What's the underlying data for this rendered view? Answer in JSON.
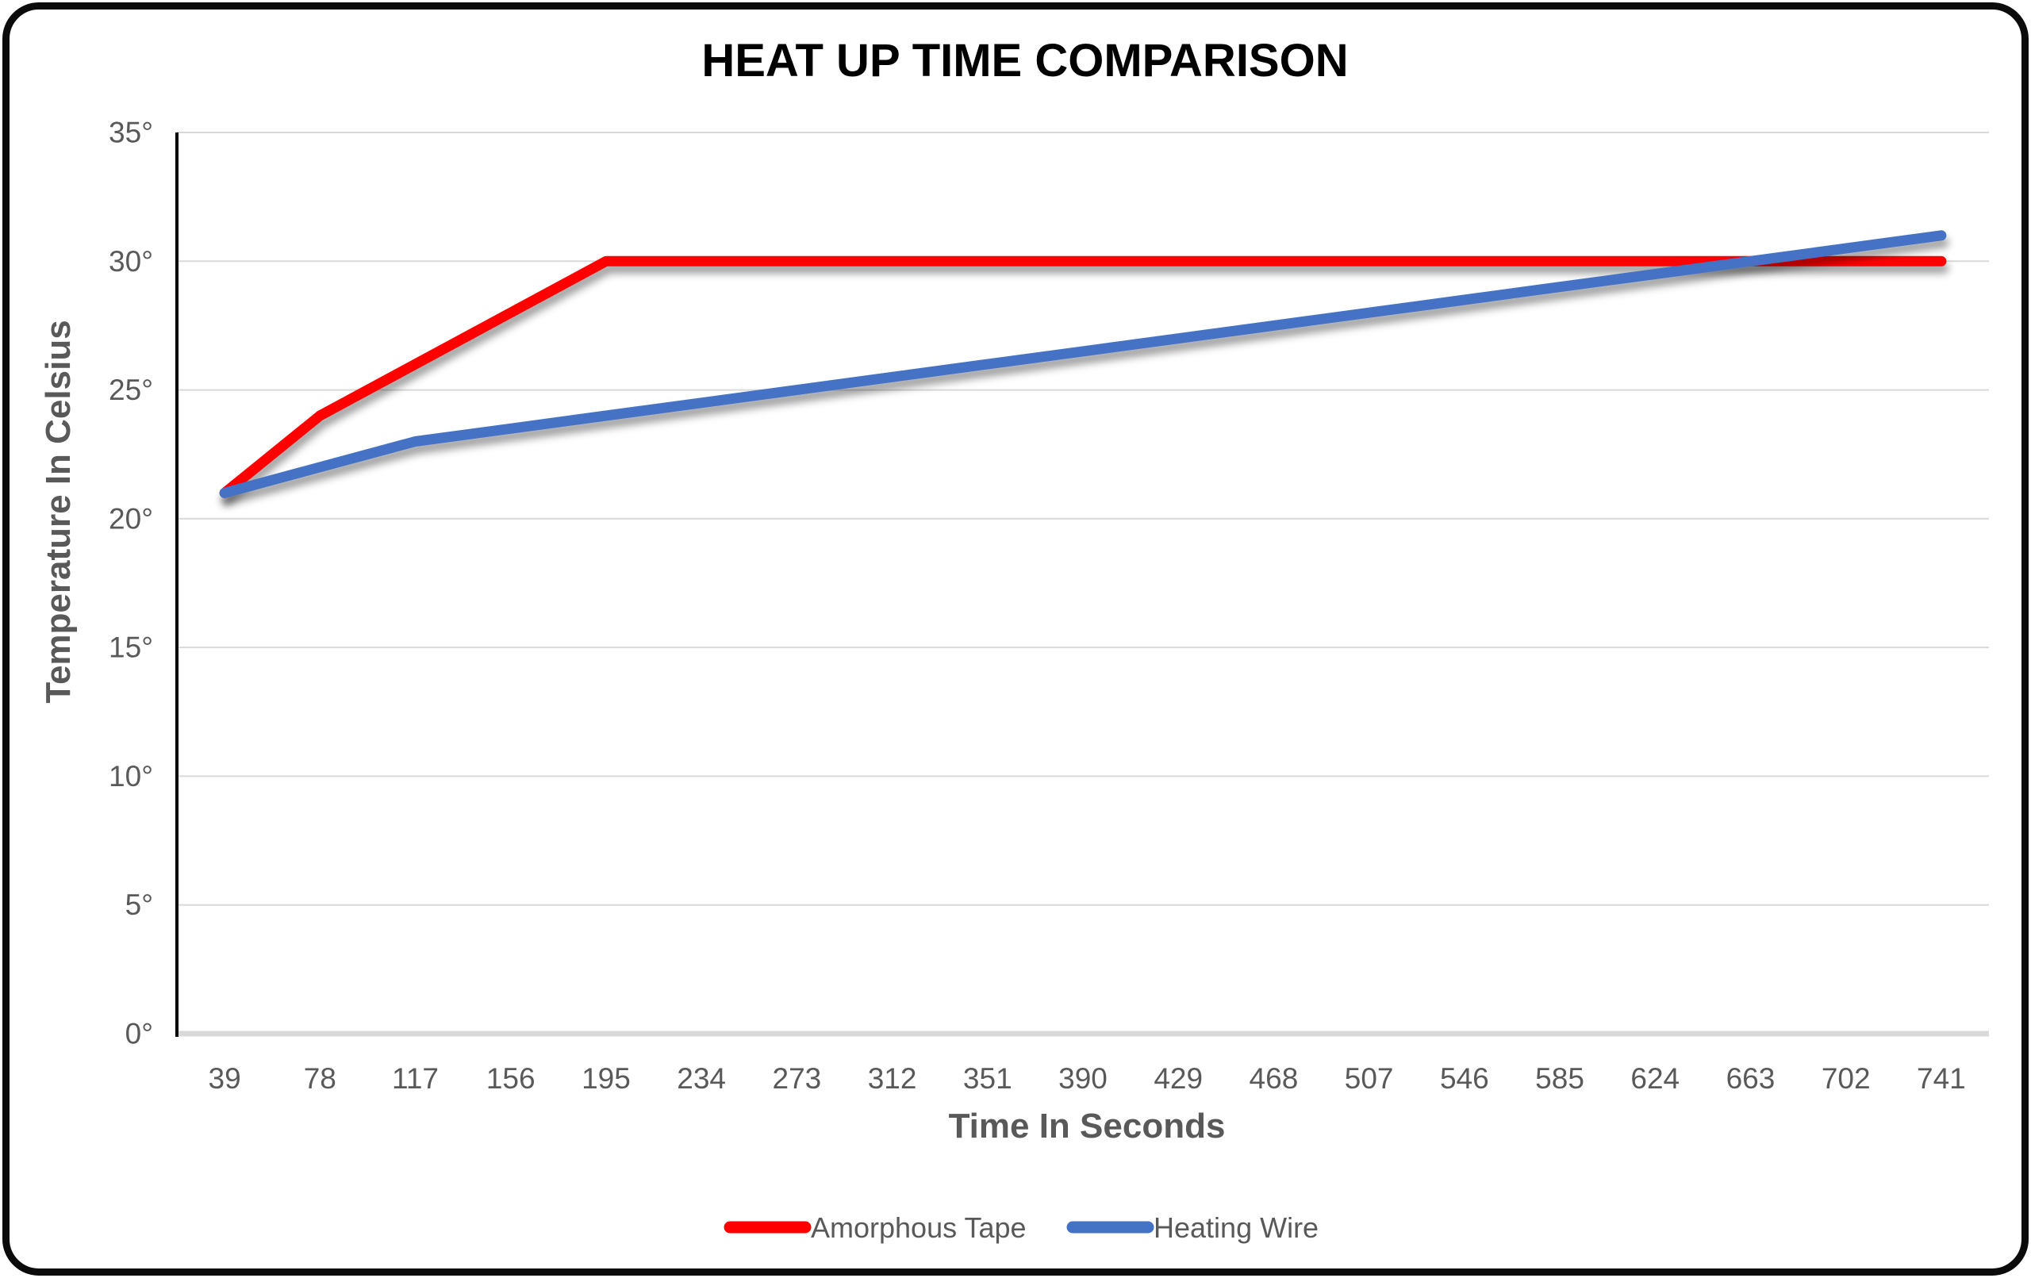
{
  "title": "HEAT UP TIME COMPARISON",
  "colors": {
    "series_red": "#FF0000",
    "series_blue": "#4472C4",
    "grid": "#D9D9D9",
    "baseline": "#D9D9D9",
    "axis_line": "#000000",
    "tick_text": "#595959",
    "axis_title_text": "#595959",
    "title_text": "#000000"
  },
  "chart_data": {
    "type": "line",
    "title": "HEAT UP TIME COMPARISON",
    "xlabel": "Time In Seconds",
    "ylabel": "Temperature In Celsius",
    "categories": [
      39,
      78,
      117,
      156,
      195,
      234,
      273,
      312,
      351,
      390,
      429,
      468,
      507,
      546,
      585,
      624,
      663,
      702,
      741
    ],
    "y_ticks": [
      {
        "value": 0,
        "label": "0°"
      },
      {
        "value": 5,
        "label": "5°"
      },
      {
        "value": 10,
        "label": "10°"
      },
      {
        "value": 15,
        "label": "15°"
      },
      {
        "value": 20,
        "label": "20°"
      },
      {
        "value": 25,
        "label": "25°"
      },
      {
        "value": 30,
        "label": "30°"
      },
      {
        "value": 35,
        "label": "35°"
      }
    ],
    "ylim": [
      0,
      35
    ],
    "grid": true,
    "legend_position": "bottom",
    "series": [
      {
        "name": "Amorphous Tape",
        "color": "#FF0000",
        "values": [
          21,
          24,
          26,
          28,
          30,
          30,
          30,
          30,
          30,
          30,
          30,
          30,
          30,
          30,
          30,
          30,
          30,
          30,
          30
        ]
      },
      {
        "name": "Heating Wire",
        "color": "#4472C4",
        "values": [
          21,
          22,
          23,
          23.5,
          24,
          24.5,
          25,
          25.5,
          26,
          26.5,
          27,
          27.5,
          28,
          28.5,
          29,
          29.5,
          30,
          30.5,
          31
        ]
      }
    ]
  }
}
